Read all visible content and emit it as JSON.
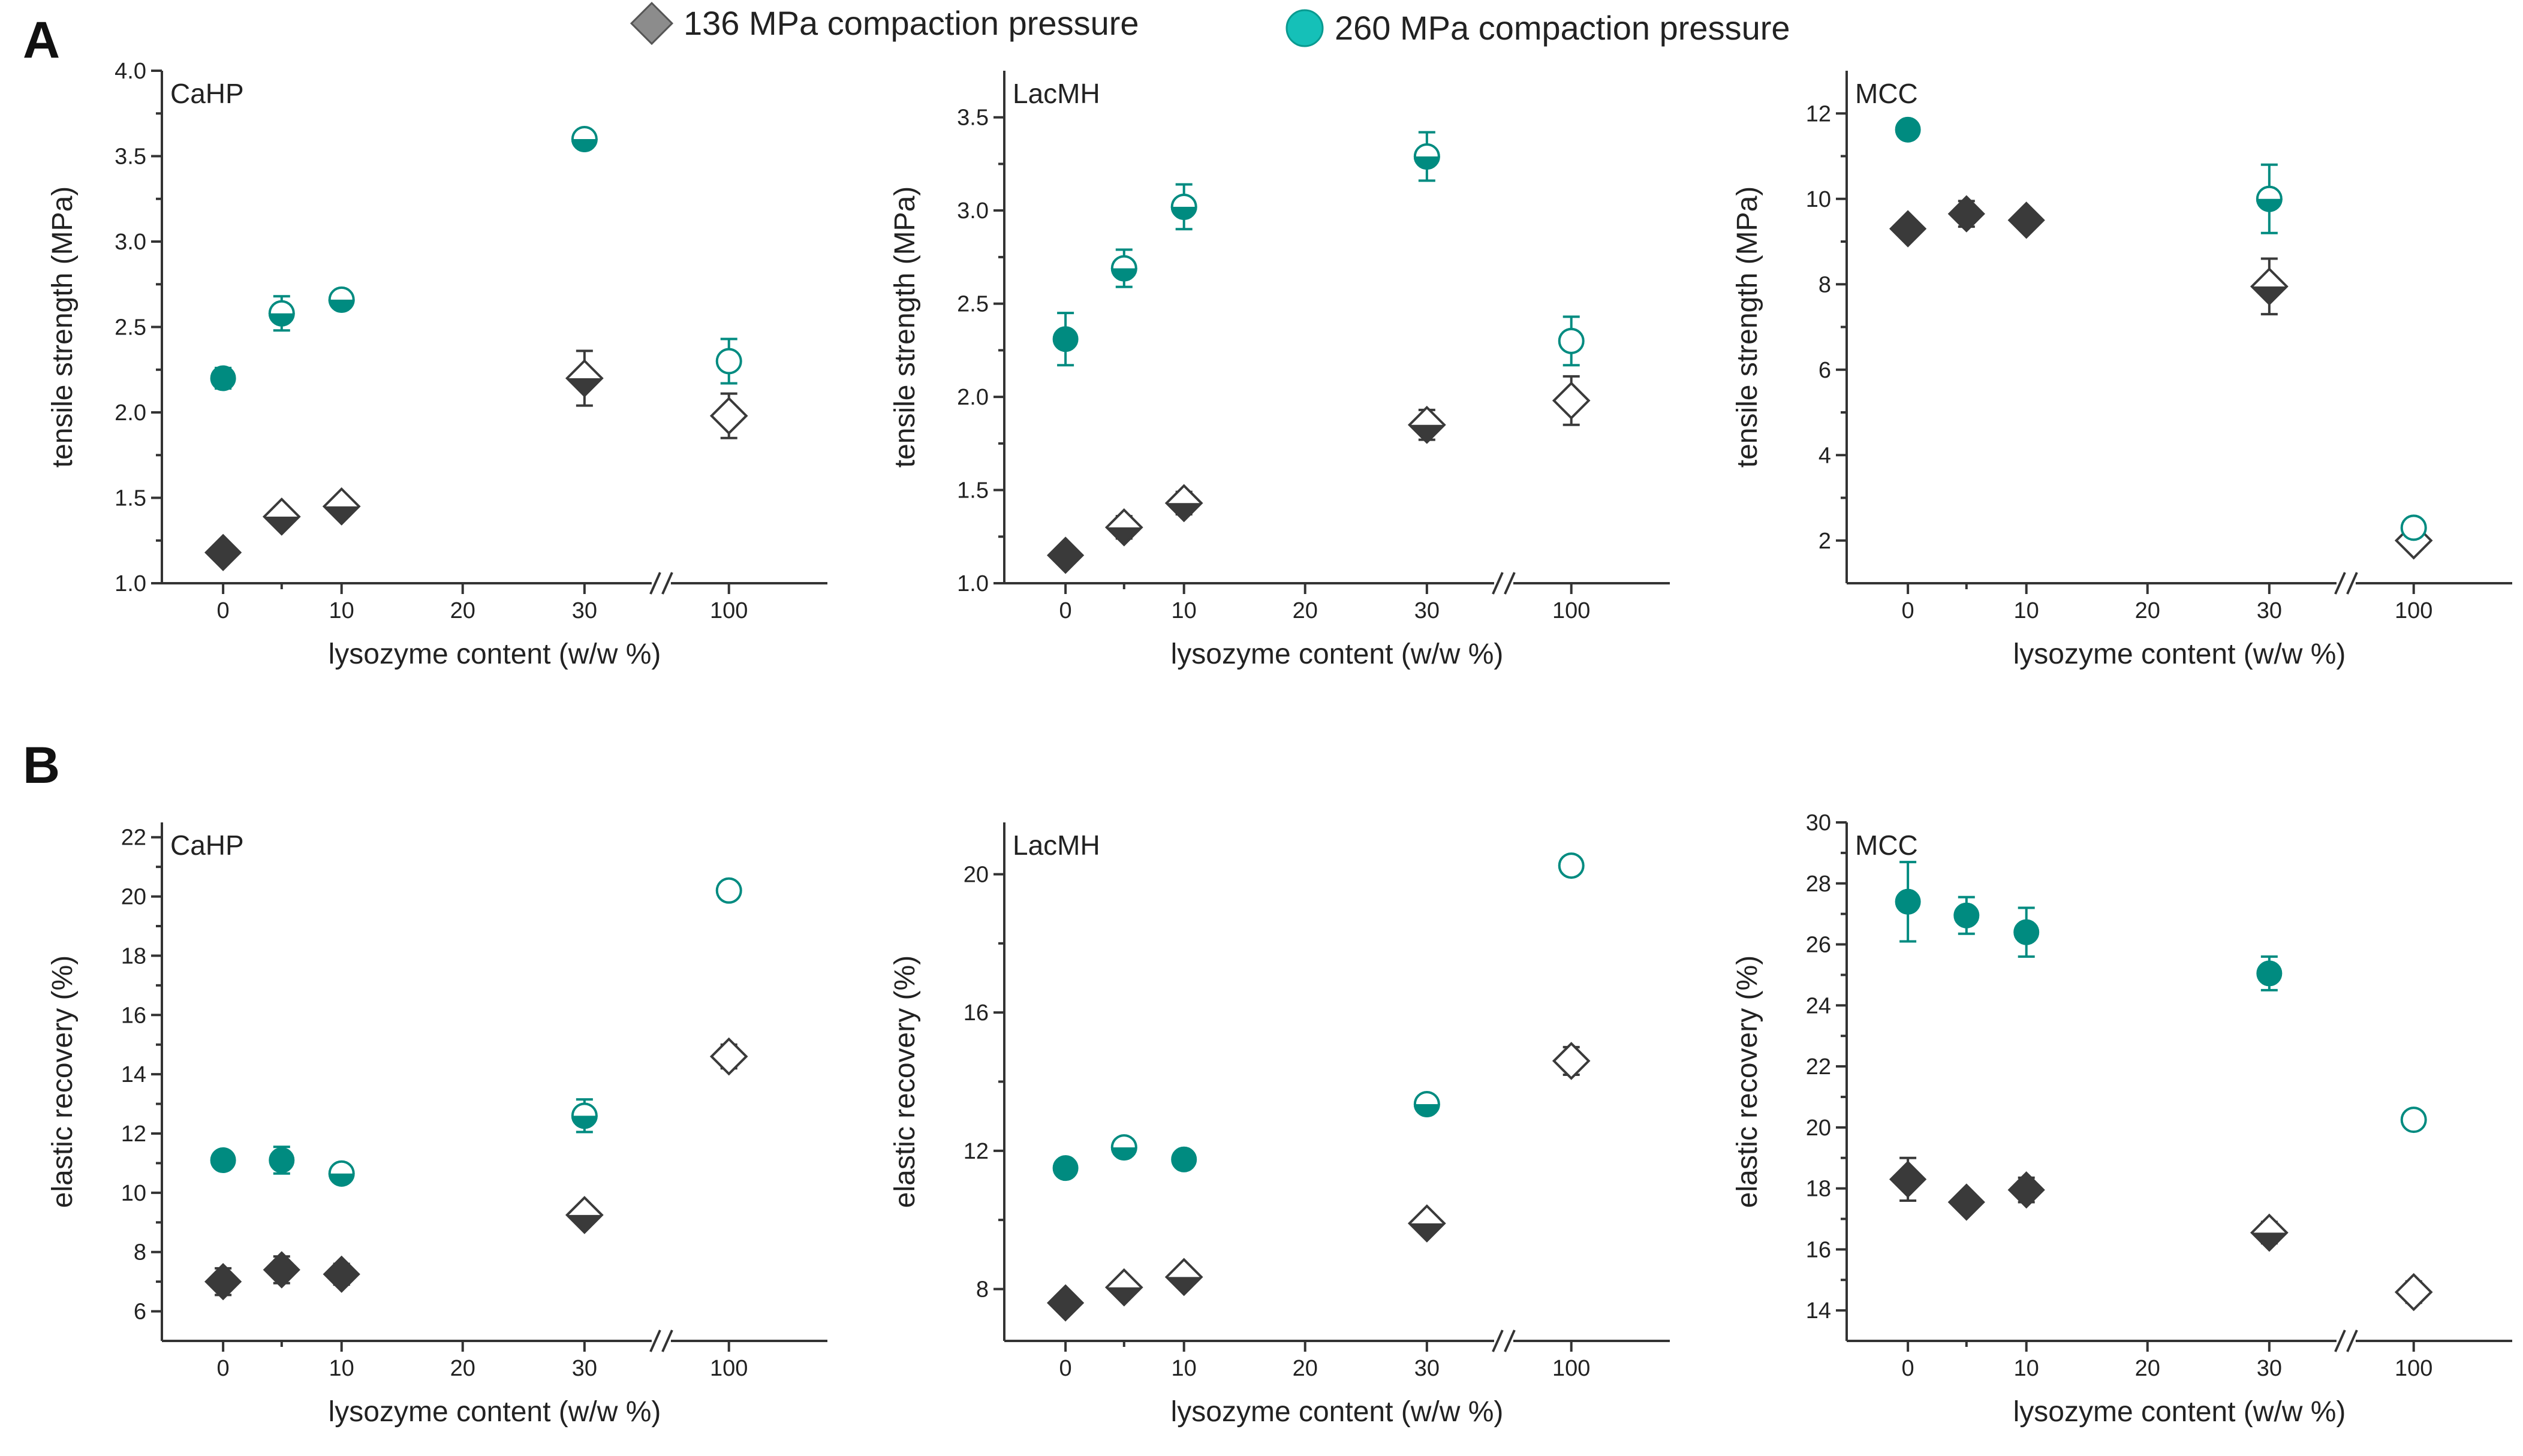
{
  "legend": {
    "series_136": "136 MPa compaction pressure",
    "series_260": "260 MPa compaction pressure",
    "color_136": "#3a3a3a",
    "color_136_legend": "#8c8c8c",
    "color_260": "#008b80",
    "color_260_legend": "#15c0b8"
  },
  "panels": {
    "A": "A",
    "B": "B"
  },
  "chart_data": [
    {
      "id": "A-CaHP",
      "row": "A",
      "col": 0,
      "type": "scatter",
      "title": "CaHP",
      "xlabel": "lysozyme content (w/w %)",
      "ylabel": "tensile strength (MPa)",
      "ylim": [
        1.0,
        4.0
      ],
      "yticks": [
        "1.0",
        "1.5",
        "2.0",
        "2.5",
        "3.0",
        "3.5",
        "4.0"
      ],
      "ytick_values": [
        1.0,
        1.5,
        2.0,
        2.5,
        3.0,
        3.5,
        4.0
      ],
      "xticks": [
        "0",
        "10",
        "20",
        "30",
        "100"
      ],
      "series": [
        {
          "name": "136 MPa compaction pressure",
          "color": "#3a3a3a",
          "marker": "diamond",
          "points": [
            [
              0,
              1.18,
              0.03,
              "full"
            ],
            [
              5,
              1.39,
              0.03,
              "half"
            ],
            [
              10,
              1.45,
              0.03,
              "half"
            ],
            [
              30,
              2.2,
              0.16,
              "half"
            ],
            [
              100,
              1.98,
              0.13,
              "open"
            ]
          ]
        },
        {
          "name": "260 MPa compaction pressure",
          "color": "#008b80",
          "marker": "circle",
          "points": [
            [
              0,
              2.2,
              0.06,
              "full"
            ],
            [
              5,
              2.58,
              0.1,
              "half"
            ],
            [
              10,
              2.66,
              0.03,
              "half"
            ],
            [
              30,
              3.6,
              0.03,
              "half"
            ],
            [
              100,
              2.3,
              0.13,
              "open"
            ]
          ]
        }
      ]
    },
    {
      "id": "A-LacMH",
      "row": "A",
      "col": 1,
      "type": "scatter",
      "title": "LacMH",
      "xlabel": "lysozyme content (w/w %)",
      "ylabel": "tensile strength (MPa)",
      "ylim": [
        1.0,
        3.75
      ],
      "yticks": [
        "1.0",
        "1.5",
        "2.0",
        "2.5",
        "3.0",
        "3.5"
      ],
      "ytick_values": [
        1.0,
        1.5,
        2.0,
        2.5,
        3.0,
        3.5
      ],
      "xticks": [
        "0",
        "10",
        "20",
        "30",
        "100"
      ],
      "series": [
        {
          "name": "136 MPa compaction pressure",
          "color": "#3a3a3a",
          "marker": "diamond",
          "points": [
            [
              0,
              1.15,
              0.04,
              "full"
            ],
            [
              5,
              1.3,
              0.06,
              "half"
            ],
            [
              10,
              1.43,
              0.06,
              "half"
            ],
            [
              30,
              1.85,
              0.08,
              "half"
            ],
            [
              100,
              1.98,
              0.13,
              "open"
            ]
          ]
        },
        {
          "name": "260 MPa compaction pressure",
          "color": "#008b80",
          "marker": "circle",
          "points": [
            [
              0,
              2.31,
              0.14,
              "full"
            ],
            [
              5,
              2.69,
              0.1,
              "half"
            ],
            [
              10,
              3.02,
              0.12,
              "half"
            ],
            [
              30,
              3.29,
              0.13,
              "half"
            ],
            [
              100,
              2.3,
              0.13,
              "open"
            ]
          ]
        }
      ]
    },
    {
      "id": "A-MCC",
      "row": "A",
      "col": 2,
      "type": "scatter",
      "title": "MCC",
      "xlabel": "lysozyme content (w/w %)",
      "ylabel": "tensile strength (MPa)",
      "ylim": [
        1.0,
        13.0
      ],
      "yticks": [
        "2",
        "4",
        "6",
        "8",
        "10",
        "12"
      ],
      "ytick_values": [
        2,
        4,
        6,
        8,
        10,
        12
      ],
      "xticks": [
        "0",
        "10",
        "20",
        "30",
        "100"
      ],
      "series": [
        {
          "name": "136 MPa compaction pressure",
          "color": "#3a3a3a",
          "marker": "diamond",
          "points": [
            [
              0,
              9.3,
              0.1,
              "full"
            ],
            [
              5,
              9.65,
              0.3,
              "full"
            ],
            [
              10,
              9.5,
              0.2,
              "full"
            ],
            [
              30,
              7.95,
              0.65,
              "half"
            ],
            [
              100,
              2.0,
              0.05,
              "open"
            ]
          ]
        },
        {
          "name": "260 MPa compaction pressure",
          "color": "#008b80",
          "marker": "circle",
          "points": [
            [
              0,
              11.62,
              0.1,
              "full"
            ],
            [
              30,
              10.0,
              0.8,
              "half"
            ],
            [
              100,
              2.3,
              0.05,
              "open"
            ]
          ]
        }
      ]
    },
    {
      "id": "B-CaHP",
      "row": "B",
      "col": 0,
      "type": "scatter",
      "title": "CaHP",
      "xlabel": "lysozyme content (w/w %)",
      "ylabel": "elastic recovery (%)",
      "ylim": [
        5.0,
        22.5
      ],
      "yticks": [
        "6",
        "8",
        "10",
        "12",
        "14",
        "16",
        "18",
        "20",
        "22"
      ],
      "ytick_values": [
        6,
        8,
        10,
        12,
        14,
        16,
        18,
        20,
        22
      ],
      "xticks": [
        "0",
        "10",
        "20",
        "30",
        "100"
      ],
      "series": [
        {
          "name": "136 MPa compaction pressure",
          "color": "#3a3a3a",
          "marker": "diamond",
          "points": [
            [
              0,
              7.0,
              0.45,
              "full"
            ],
            [
              5,
              7.4,
              0.45,
              "full"
            ],
            [
              10,
              7.25,
              0.35,
              "full"
            ],
            [
              30,
              9.25,
              0.2,
              "half"
            ],
            [
              100,
              14.6,
              0.4,
              "open"
            ]
          ]
        },
        {
          "name": "260 MPa compaction pressure",
          "color": "#008b80",
          "marker": "circle",
          "points": [
            [
              0,
              11.1,
              0.15,
              "full"
            ],
            [
              5,
              11.1,
              0.45,
              "full"
            ],
            [
              10,
              10.65,
              0.15,
              "half"
            ],
            [
              30,
              12.6,
              0.55,
              "half"
            ],
            [
              100,
              20.2,
              0.1,
              "open"
            ]
          ]
        }
      ]
    },
    {
      "id": "B-LacMH",
      "row": "B",
      "col": 1,
      "type": "scatter",
      "title": "LacMH",
      "xlabel": "lysozyme content (w/w %)",
      "ylabel": "elastic recovery (%)",
      "ylim": [
        6.5,
        21.5
      ],
      "yticks": [
        "8",
        "12",
        "16",
        "20"
      ],
      "ytick_values": [
        8,
        12,
        16,
        20
      ],
      "xticks": [
        "0",
        "10",
        "20",
        "30",
        "100"
      ],
      "series": [
        {
          "name": "136 MPa compaction pressure",
          "color": "#3a3a3a",
          "marker": "diamond",
          "points": [
            [
              0,
              7.6,
              0.2,
              "full"
            ],
            [
              5,
              8.05,
              0.2,
              "half"
            ],
            [
              10,
              8.35,
              0.15,
              "half"
            ],
            [
              30,
              9.9,
              0.2,
              "half"
            ],
            [
              100,
              14.6,
              0.4,
              "open"
            ]
          ]
        },
        {
          "name": "260 MPa compaction pressure",
          "color": "#008b80",
          "marker": "circle",
          "points": [
            [
              0,
              11.5,
              0.1,
              "full"
            ],
            [
              5,
              12.1,
              0.1,
              "half"
            ],
            [
              10,
              11.75,
              0.1,
              "full"
            ],
            [
              30,
              13.35,
              0.1,
              "half"
            ],
            [
              100,
              20.25,
              0.1,
              "open"
            ]
          ]
        }
      ]
    },
    {
      "id": "B-MCC",
      "row": "B",
      "col": 2,
      "type": "scatter",
      "title": "MCC",
      "xlabel": "lysozyme content (w/w %)",
      "ylabel": "elastic recovery (%)",
      "ylim": [
        13.0,
        30.0
      ],
      "yticks": [
        "14",
        "16",
        "18",
        "20",
        "22",
        "24",
        "26",
        "28",
        "30"
      ],
      "ytick_values": [
        14,
        16,
        18,
        20,
        22,
        24,
        26,
        28,
        30
      ],
      "xticks": [
        "0",
        "10",
        "20",
        "30",
        "100"
      ],
      "series": [
        {
          "name": "136 MPa compaction pressure",
          "color": "#3a3a3a",
          "marker": "diamond",
          "points": [
            [
              0,
              18.3,
              0.7,
              "full"
            ],
            [
              5,
              17.55,
              0.15,
              "full"
            ],
            [
              10,
              17.95,
              0.4,
              "full"
            ],
            [
              30,
              16.55,
              0.35,
              "half"
            ],
            [
              100,
              14.6,
              0.35,
              "open"
            ]
          ]
        },
        {
          "name": "260 MPa compaction pressure",
          "color": "#008b80",
          "marker": "circle",
          "points": [
            [
              0,
              27.4,
              1.3,
              "full"
            ],
            [
              5,
              26.95,
              0.6,
              "full"
            ],
            [
              10,
              26.4,
              0.8,
              "full"
            ],
            [
              30,
              25.05,
              0.55,
              "full"
            ],
            [
              100,
              20.25,
              0.1,
              "open"
            ]
          ]
        }
      ]
    }
  ]
}
